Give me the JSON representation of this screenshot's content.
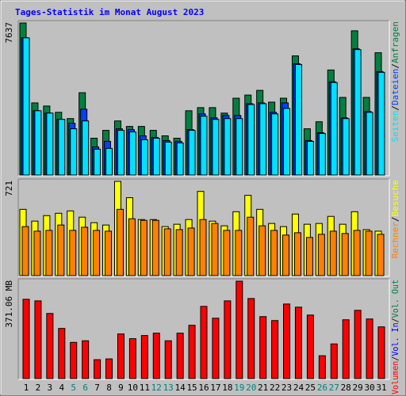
{
  "title": "Tages-Statistik im Monat August 2023",
  "chart_data": [
    {
      "type": "bar",
      "separator": "/",
      "ylim": [
        0,
        7637
      ],
      "yticks": [
        7637
      ],
      "series": [
        {
          "name": "Seiten",
          "color": "#00E0FF",
          "values": [
            6890,
            3228,
            3110,
            2795,
            2323,
            2717,
            1299,
            1339,
            2244,
            2165,
            1772,
            1850,
            1654,
            1614,
            2244,
            2953,
            2795,
            2835,
            2835,
            3543,
            3583,
            3071,
            3346,
            5551,
            1693,
            2087,
            4646,
            2835,
            6299,
            3150,
            5157
          ]
        },
        {
          "name": "Dateien",
          "color": "#0040FF",
          "values": [
            6890,
            3228,
            3110,
            2795,
            2598,
            3307,
            1417,
            1693,
            2323,
            2283,
            1969,
            1890,
            1732,
            1693,
            2283,
            3071,
            2874,
            2992,
            2992,
            3583,
            3622,
            3150,
            3622,
            5590,
            1732,
            2126,
            4685,
            2874,
            6339,
            3189,
            5197
          ]
        },
        {
          "name": "Anfragen",
          "color": "#008040",
          "values": [
            7637,
            3622,
            3465,
            3150,
            2835,
            4134,
            1850,
            2244,
            2717,
            2441,
            2441,
            2244,
            1969,
            1850,
            3228,
            3386,
            3386,
            3110,
            3858,
            4016,
            4252,
            3661,
            3858,
            5984,
            2323,
            2677,
            5276,
            3898,
            7244,
            3898,
            6142
          ]
        }
      ]
    },
    {
      "type": "bar",
      "separator": "/",
      "ylim": [
        0,
        721
      ],
      "yticks": [
        721
      ],
      "series": [
        {
          "name": "Rechner",
          "color": "#FF8000",
          "values": [
            375,
            340,
            346,
            387,
            346,
            370,
            346,
            340,
            507,
            435,
            423,
            423,
            358,
            352,
            364,
            429,
            399,
            346,
            346,
            447,
            381,
            346,
            310,
            328,
            292,
            316,
            340,
            322,
            346,
            340,
            316
          ]
        },
        {
          "name": "Besuche",
          "color": "#FFFF00",
          "values": [
            507,
            417,
            459,
            477,
            495,
            447,
            405,
            387,
            721,
            596,
            429,
            429,
            375,
            393,
            429,
            644,
            417,
            381,
            489,
            614,
            507,
            399,
            375,
            471,
            393,
            399,
            453,
            393,
            489,
            352,
            340
          ]
        }
      ]
    },
    {
      "type": "bar",
      "separator": "/",
      "ylim": [
        0,
        371.06
      ],
      "yticks": [
        {
          "value": 371.06,
          "label": "371.06 MB"
        }
      ],
      "categories": [
        1,
        2,
        3,
        4,
        5,
        6,
        7,
        8,
        9,
        10,
        11,
        12,
        13,
        14,
        15,
        16,
        17,
        18,
        19,
        20,
        21,
        22,
        23,
        24,
        25,
        26,
        27,
        28,
        29,
        30,
        31
      ],
      "category_colors": [
        "#000000",
        "#000000",
        "#000000",
        "#000000",
        "#008080",
        "#008080",
        "#000000",
        "#000000",
        "#000000",
        "#000000",
        "#000000",
        "#008080",
        "#008080",
        "#000000",
        "#000000",
        "#000000",
        "#000000",
        "#000000",
        "#008080",
        "#008080",
        "#000000",
        "#000000",
        "#000000",
        "#000000",
        "#000000",
        "#008080",
        "#008080",
        "#000000",
        "#000000",
        "#000000",
        "#000000"
      ],
      "series": [
        {
          "name": "Volumen",
          "color": "#FF0000",
          "values": [
            302,
            296,
            248,
            191,
            138,
            144,
            72,
            75,
            170,
            152,
            164,
            173,
            144,
            173,
            203,
            275,
            230,
            296,
            371.06,
            305,
            236,
            221,
            284,
            272,
            242,
            87,
            132,
            224,
            260,
            227,
            197
          ]
        },
        {
          "name": "Vol. In",
          "color": "#0000FF",
          "values": [
            null,
            null,
            null,
            null,
            null,
            null,
            null,
            null,
            null,
            null,
            null,
            null,
            null,
            null,
            null,
            null,
            null,
            null,
            null,
            null,
            null,
            null,
            null,
            null,
            null,
            null,
            null,
            null,
            null,
            null,
            null
          ]
        },
        {
          "name": "Vol. Out",
          "color": "#008040",
          "values": [
            null,
            null,
            null,
            null,
            null,
            null,
            null,
            null,
            null,
            null,
            null,
            null,
            null,
            null,
            null,
            null,
            null,
            null,
            null,
            null,
            null,
            null,
            null,
            null,
            null,
            null,
            null,
            null,
            null,
            null,
            null
          ]
        }
      ]
    }
  ]
}
